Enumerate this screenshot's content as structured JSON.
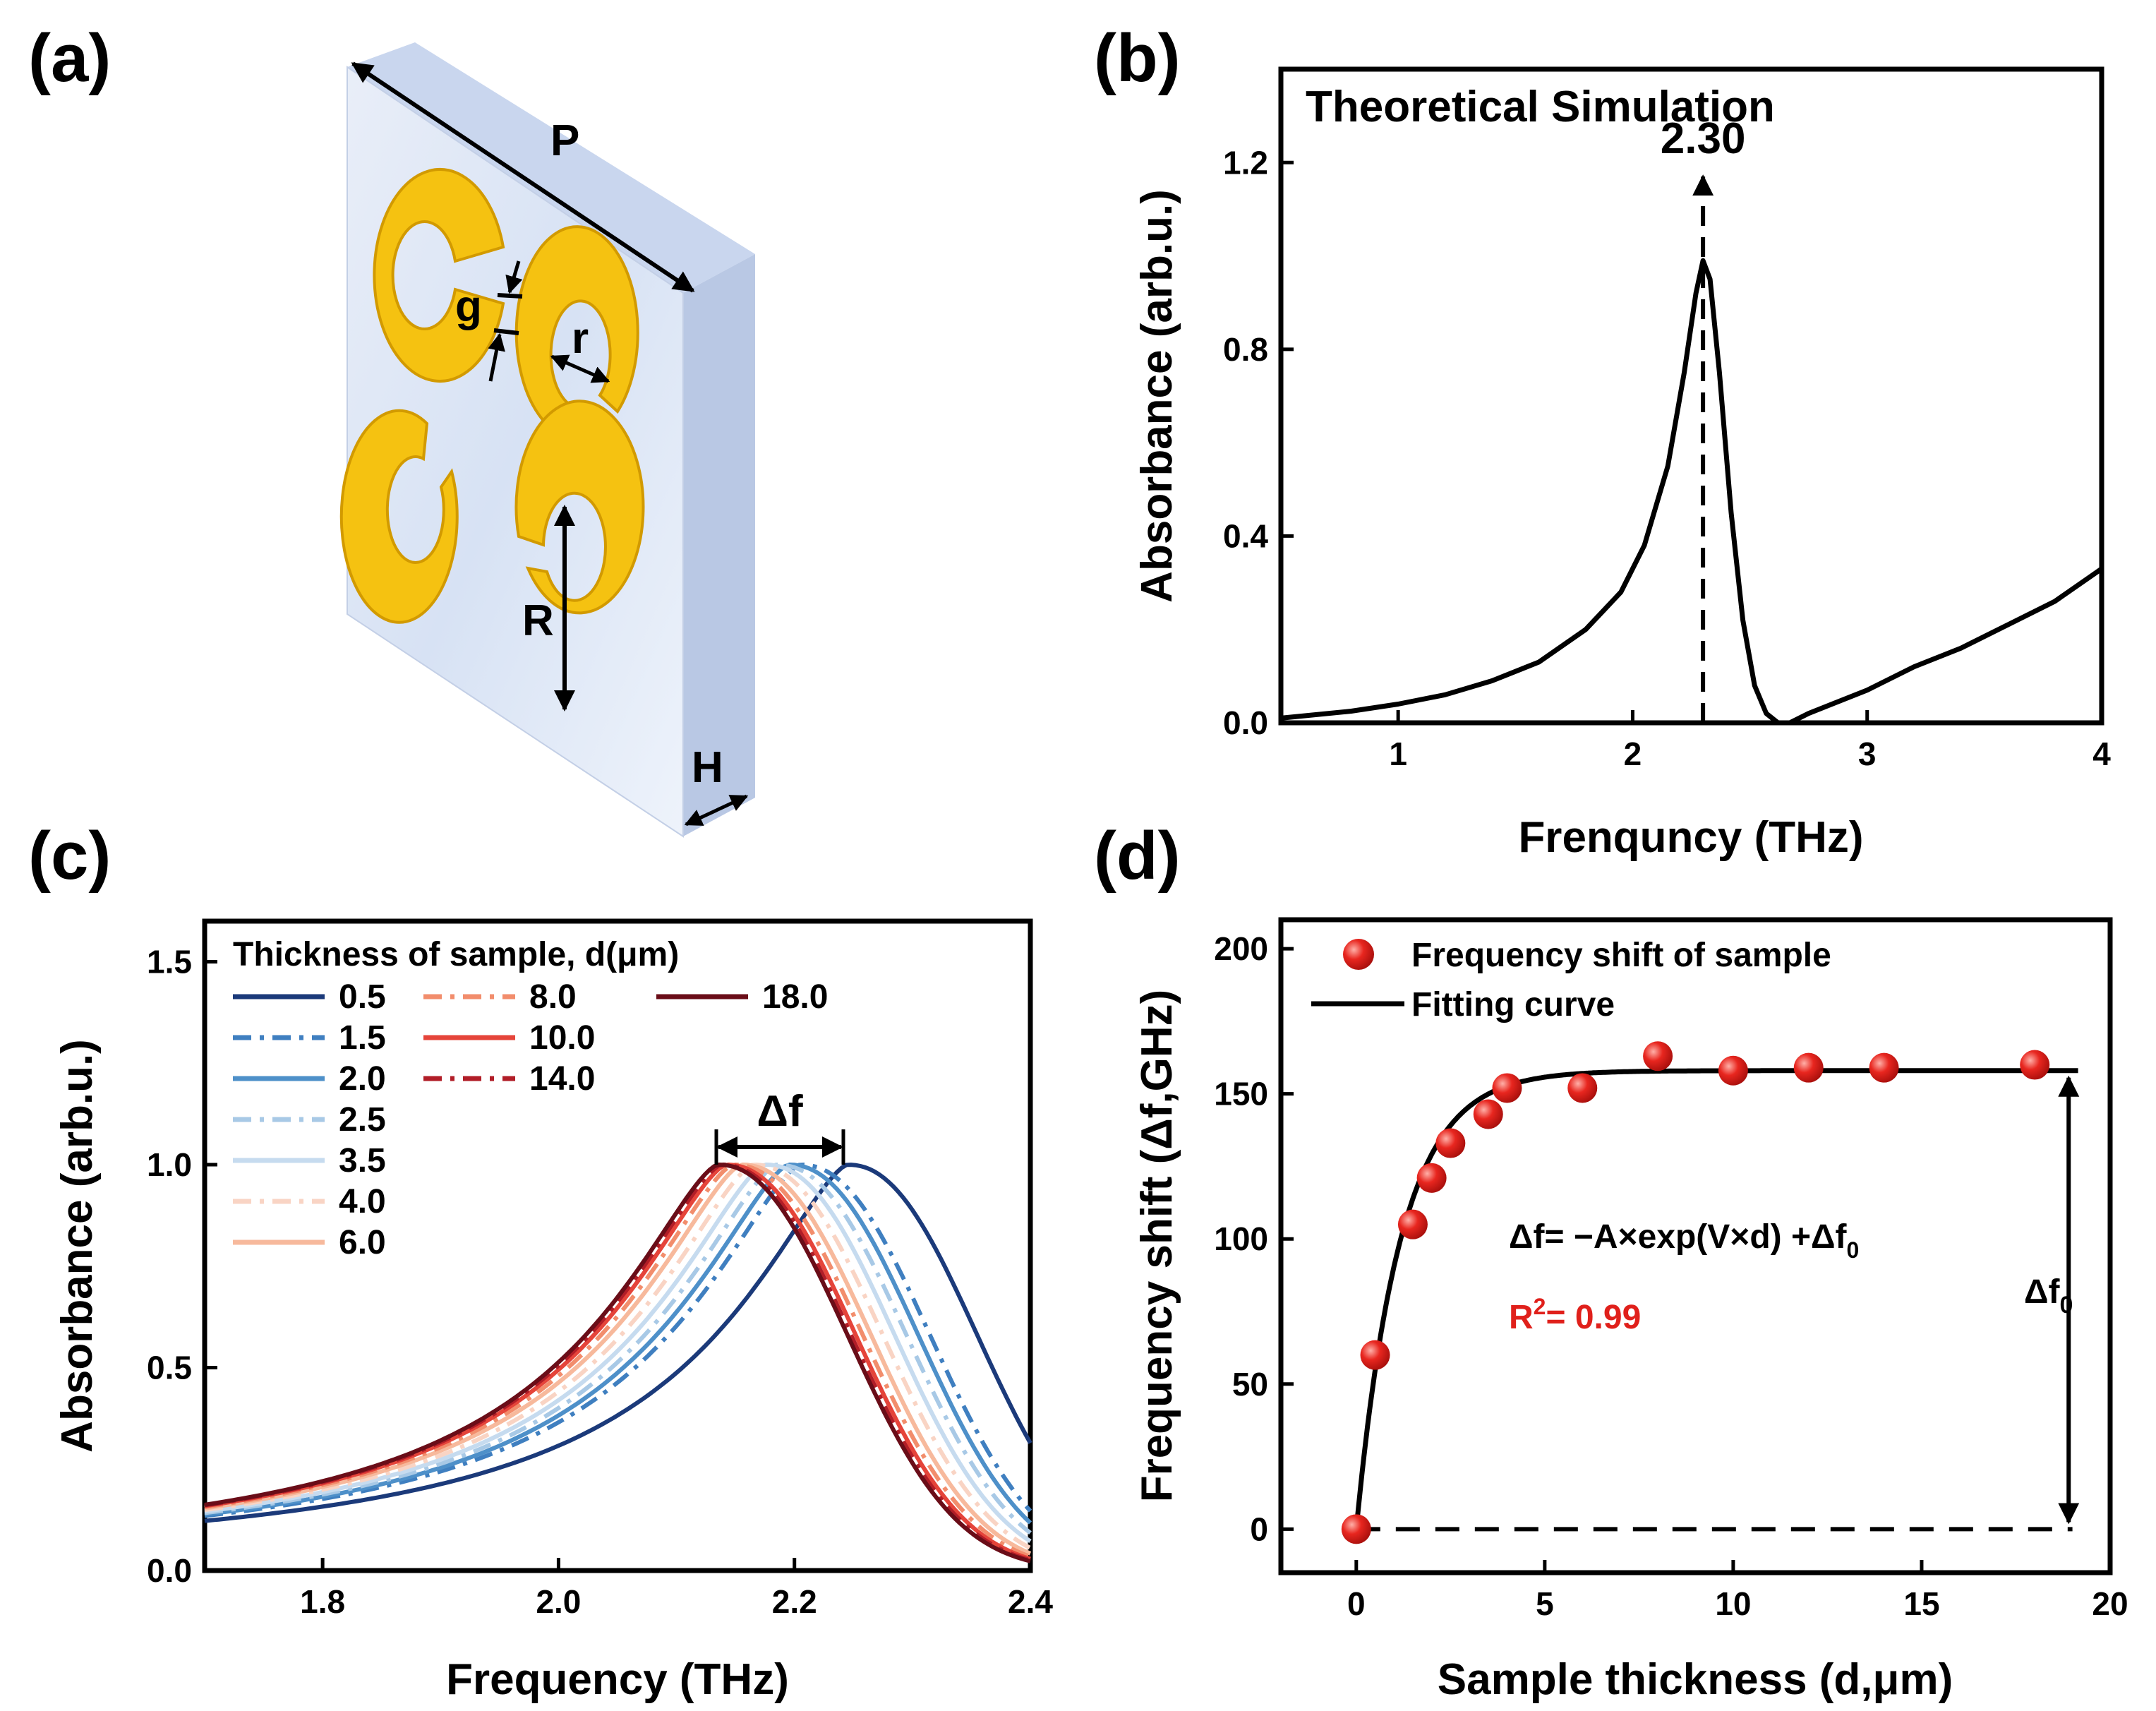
{
  "panels": {
    "a": {
      "label": "(a)",
      "dims": {
        "P": "P",
        "g": "g",
        "r": "r",
        "R": "R",
        "H": "H"
      },
      "colors": {
        "substrate": "#dfe8f6",
        "ring": "#f5c211",
        "ring_edge": "#d29a00"
      }
    },
    "b": {
      "label": "(b)"
    },
    "c": {
      "label": "(c)"
    },
    "d": {
      "label": "(d)"
    }
  },
  "chart_data": [
    {
      "id": "b",
      "type": "line",
      "title": "Theoretical Simulation",
      "xlabel": "Frenquncy (THz)",
      "ylabel": "Absorbance (arb.u.)",
      "xlim": [
        0.5,
        4.0
      ],
      "ylim": [
        0.0,
        1.4
      ],
      "xticks": [
        1,
        2,
        3,
        4
      ],
      "yticks": [
        0.0,
        0.4,
        0.8,
        1.2
      ],
      "xtick_labels": [
        "1",
        "2",
        "3",
        "4"
      ],
      "ytick_labels": [
        "0.0",
        "0.4",
        "0.8",
        "1.2"
      ],
      "peak": {
        "x": 2.3,
        "y": 1.0,
        "label": "2.30"
      },
      "series": [
        {
          "name": "Simulation",
          "color": "#000000",
          "x": [
            0.5,
            0.8,
            1.0,
            1.2,
            1.4,
            1.6,
            1.8,
            1.95,
            2.05,
            2.15,
            2.22,
            2.27,
            2.3,
            2.33,
            2.37,
            2.42,
            2.47,
            2.52,
            2.57,
            2.62,
            2.67,
            2.75,
            2.85,
            3.0,
            3.2,
            3.4,
            3.6,
            3.8,
            4.0
          ],
          "y": [
            0.01,
            0.025,
            0.04,
            0.06,
            0.09,
            0.13,
            0.2,
            0.28,
            0.38,
            0.55,
            0.75,
            0.92,
            0.99,
            0.95,
            0.75,
            0.45,
            0.22,
            0.08,
            0.02,
            0.0,
            0.0,
            0.02,
            0.04,
            0.07,
            0.12,
            0.16,
            0.21,
            0.26,
            0.33
          ]
        }
      ]
    },
    {
      "id": "c",
      "type": "line",
      "xlabel": "Frequency (THz)",
      "ylabel": "Absorbance (arb.u.)",
      "xlim": [
        1.7,
        2.4
      ],
      "ylim": [
        0.0,
        1.6
      ],
      "xticks": [
        1.8,
        2.0,
        2.2,
        2.4
      ],
      "yticks": [
        0.0,
        0.5,
        1.0,
        1.5
      ],
      "xtick_labels": [
        "1.8",
        "2.0",
        "2.2",
        "2.4"
      ],
      "ytick_labels": [
        "0.0",
        "0.5",
        "1.0",
        "1.5"
      ],
      "legend_title": "Thickness of sample, d(μm)",
      "annotation": "Δf",
      "series": [
        {
          "name": "0.5",
          "peak": 2.245,
          "color": "#1b3a7a",
          "dash": "solid"
        },
        {
          "name": "1.5",
          "peak": 2.205,
          "color": "#3f7fc0",
          "dash": "dashdot"
        },
        {
          "name": "2.0",
          "peak": 2.195,
          "color": "#4e90c9",
          "dash": "solid"
        },
        {
          "name": "2.5",
          "peak": 2.185,
          "color": "#a8c9e6",
          "dash": "dashdot"
        },
        {
          "name": "3.5",
          "peak": 2.175,
          "color": "#c6dbef",
          "dash": "solid"
        },
        {
          "name": "4.0",
          "peak": 2.165,
          "color": "#f9d4c4",
          "dash": "dashdot"
        },
        {
          "name": "6.0",
          "peak": 2.155,
          "color": "#f7b99c",
          "dash": "solid"
        },
        {
          "name": "8.0",
          "peak": 2.148,
          "color": "#f28d6c",
          "dash": "dashdot"
        },
        {
          "name": "10.0",
          "peak": 2.142,
          "color": "#e5443a",
          "dash": "solid"
        },
        {
          "name": "14.0",
          "peak": 2.138,
          "color": "#b11d27",
          "dash": "dashdot"
        },
        {
          "name": "18.0",
          "peak": 2.135,
          "color": "#6a0d18",
          "dash": "solid"
        }
      ]
    },
    {
      "id": "d",
      "type": "scatter",
      "xlabel": "Sample thickness (d,μm)",
      "ylabel": "Frequency shift (Δf,GHz)",
      "xlim": [
        -2,
        20
      ],
      "ylim": [
        -15,
        210
      ],
      "xticks": [
        0,
        5,
        10,
        15,
        20
      ],
      "yticks": [
        0,
        50,
        100,
        150,
        200
      ],
      "xtick_labels": [
        "0",
        "5",
        "10",
        "15",
        "20"
      ],
      "ytick_labels": [
        "0",
        "50",
        "100",
        "150",
        "200"
      ],
      "points": {
        "name": "Frequency shift of sample",
        "color": "#e0201b",
        "x": [
          0,
          0.5,
          1.5,
          2.0,
          2.5,
          3.5,
          4.0,
          6.0,
          8.0,
          10.0,
          12.0,
          14.0,
          18.0
        ],
        "y": [
          0,
          60,
          105,
          121,
          133,
          143,
          152,
          152,
          163,
          158,
          159,
          159,
          160
        ]
      },
      "fit": {
        "name": "Fitting curve",
        "A": 158,
        "V": -0.85,
        "df0": 158
      },
      "equation": "Δf= −A×exp(V×d) +Δf",
      "equation_sub": "0",
      "r2_label": "R",
      "r2_sup": "2",
      "r2_value": "=  0.99",
      "bracket_label": "Δf",
      "bracket_sub": "0"
    }
  ]
}
